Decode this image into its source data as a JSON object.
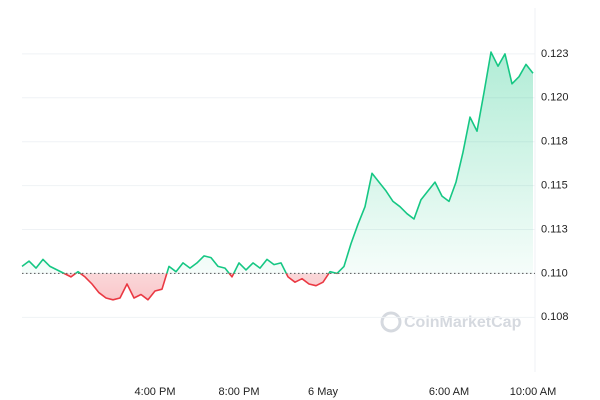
{
  "chart_data": {
    "type": "line",
    "watermark": "CoinMarketCap",
    "baseline": 0.11,
    "colors": {
      "up": "#16c784",
      "down": "#ea3943"
    },
    "grid": true,
    "categories": [
      null,
      null,
      null,
      null,
      null,
      null,
      null,
      null,
      null,
      null,
      null,
      null,
      null,
      null,
      null,
      null,
      null,
      null,
      null,
      "4:00 PM",
      null,
      null,
      null,
      null,
      null,
      null,
      null,
      null,
      null,
      null,
      null,
      "8:00 PM",
      null,
      null,
      null,
      null,
      null,
      null,
      null,
      null,
      null,
      null,
      null,
      "6 May",
      null,
      null,
      null,
      null,
      null,
      null,
      null,
      null,
      null,
      null,
      null,
      null,
      null,
      null,
      null,
      null,
      null,
      "6:00 AM",
      null,
      null,
      null,
      null,
      null,
      null,
      null,
      null,
      null,
      null,
      null,
      "10:00 AM"
    ],
    "values": [
      0.1104,
      0.1107,
      0.1103,
      0.1108,
      0.1104,
      0.1102,
      0.11,
      0.1098,
      0.1101,
      0.1098,
      0.1094,
      0.1089,
      0.1086,
      0.1085,
      0.1086,
      0.1094,
      0.1086,
      0.1088,
      0.1085,
      0.109,
      0.1091,
      0.1104,
      0.1101,
      0.1106,
      0.1103,
      0.1106,
      0.111,
      0.1109,
      0.1104,
      0.1103,
      0.1098,
      0.1106,
      0.1102,
      0.1106,
      0.1103,
      0.1108,
      0.1105,
      0.1106,
      0.1098,
      0.1095,
      0.1097,
      0.1094,
      0.1093,
      0.1095,
      0.1101,
      0.11,
      0.1104,
      0.1117,
      0.1128,
      0.1138,
      0.1157,
      0.1152,
      0.1147,
      0.1141,
      0.1138,
      0.1134,
      0.1131,
      0.1142,
      0.1147,
      0.1152,
      0.1144,
      0.1141,
      0.1152,
      0.1169,
      0.1189,
      0.1181,
      0.1203,
      0.1226,
      0.1218,
      0.1225,
      0.1208,
      0.1212,
      0.1219,
      0.1214
    ],
    "ylim": [
      0.1045,
      0.125
    ],
    "yticks": [
      {
        "value": 0.1075,
        "label": "0.108"
      },
      {
        "value": 0.11,
        "label": "0.110"
      },
      {
        "value": 0.1125,
        "label": "0.113"
      },
      {
        "value": 0.115,
        "label": "0.115"
      },
      {
        "value": 0.1175,
        "label": "0.118"
      },
      {
        "value": 0.12,
        "label": "0.120"
      },
      {
        "value": 0.1225,
        "label": "0.123"
      }
    ]
  }
}
